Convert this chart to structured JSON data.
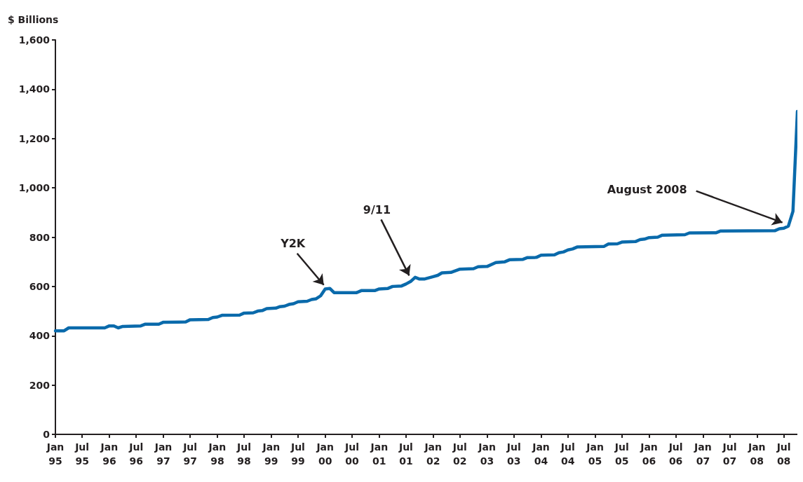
{
  "chart_data": {
    "type": "line",
    "ylabel": "$ Billions",
    "x": [
      "1995-01",
      "1995-03",
      "1995-04",
      "1995-12",
      "1996-01",
      "1996-02",
      "1996-03",
      "1996-04",
      "1996-08",
      "1996-09",
      "1996-12",
      "1997-01",
      "1997-06",
      "1997-07",
      "1997-11",
      "1997-12",
      "1998-01",
      "1998-02",
      "1998-06",
      "1998-07",
      "1998-09",
      "1998-10",
      "1998-11",
      "1998-12",
      "1999-02",
      "1999-03",
      "1999-04",
      "1999-05",
      "1999-06",
      "1999-07",
      "1999-09",
      "1999-10",
      "1999-11",
      "1999-12",
      "2000-01",
      "2000-02",
      "2000-03",
      "2000-08",
      "2000-09",
      "2000-12",
      "2001-01",
      "2001-03",
      "2001-04",
      "2001-06",
      "2001-07",
      "2001-08",
      "2001-09",
      "2001-10",
      "2001-11",
      "2002-01",
      "2002-02",
      "2002-03",
      "2002-05",
      "2002-07",
      "2002-10",
      "2002-11",
      "2003-01",
      "2003-03",
      "2003-05",
      "2003-06",
      "2003-09",
      "2003-10",
      "2003-12",
      "2004-01",
      "2004-04",
      "2004-05",
      "2004-06",
      "2004-07",
      "2004-08",
      "2004-09",
      "2005-03",
      "2005-04",
      "2005-06",
      "2005-07",
      "2005-10",
      "2005-11",
      "2005-12",
      "2006-01",
      "2006-03",
      "2006-04",
      "2006-09",
      "2006-10",
      "2007-04",
      "2007-05",
      "2008-05",
      "2008-06",
      "2008-07",
      "2008-08",
      "2008-09",
      "2008-10"
    ],
    "series": [
      {
        "color": "#0a6aab",
        "values": [
          420,
          420,
          432,
          432,
          440,
          440,
          432,
          438,
          440,
          447,
          447,
          455,
          456,
          465,
          466,
          474,
          476,
          483,
          484,
          492,
          493,
          500,
          502,
          510,
          512,
          518,
          520,
          527,
          530,
          538,
          540,
          547,
          550,
          562,
          590,
          592,
          575,
          575,
          583,
          583,
          590,
          592,
          600,
          602,
          610,
          620,
          637,
          630,
          630,
          640,
          645,
          655,
          657,
          670,
          672,
          680,
          681,
          697,
          700,
          708,
          710,
          717,
          718,
          727,
          728,
          737,
          740,
          748,
          752,
          760,
          762,
          772,
          773,
          780,
          782,
          790,
          792,
          798,
          800,
          808,
          810,
          817,
          818,
          825,
          826,
          834,
          836,
          845,
          905,
          1310
        ]
      }
    ],
    "xlim": [
      "1995-01",
      "2008-10"
    ],
    "xticks": [
      {
        "value": "1995-01",
        "label": "Jan 95"
      },
      {
        "value": "1995-07",
        "label": "Jul 95"
      },
      {
        "value": "1996-01",
        "label": "Jan 96"
      },
      {
        "value": "1996-07",
        "label": "Jul 96"
      },
      {
        "value": "1997-01",
        "label": "Jan 97"
      },
      {
        "value": "1997-07",
        "label": "Jul 97"
      },
      {
        "value": "1998-01",
        "label": "Jan 98"
      },
      {
        "value": "1998-07",
        "label": "Jul 98"
      },
      {
        "value": "1999-01",
        "label": "Jan 99"
      },
      {
        "value": "1999-07",
        "label": "Jul 99"
      },
      {
        "value": "2000-01",
        "label": "Jan 00"
      },
      {
        "value": "2000-07",
        "label": "Jul 00"
      },
      {
        "value": "2001-01",
        "label": "Jan 01"
      },
      {
        "value": "2001-07",
        "label": "Jul 01"
      },
      {
        "value": "2002-01",
        "label": "Jan 02"
      },
      {
        "value": "2002-07",
        "label": "Jul 02"
      },
      {
        "value": "2003-01",
        "label": "Jan 03"
      },
      {
        "value": "2003-07",
        "label": "Jul 03"
      },
      {
        "value": "2004-01",
        "label": "Jan 04"
      },
      {
        "value": "2004-07",
        "label": "Jul 04"
      },
      {
        "value": "2005-01",
        "label": "Jan 05"
      },
      {
        "value": "2005-07",
        "label": "Jul 05"
      },
      {
        "value": "2006-01",
        "label": "Jan 06"
      },
      {
        "value": "2006-07",
        "label": "Jul 06"
      },
      {
        "value": "2007-01",
        "label": "Jan 07"
      },
      {
        "value": "2007-07",
        "label": "Jul 07"
      },
      {
        "value": "2008-01",
        "label": "Jan 08"
      },
      {
        "value": "2008-07",
        "label": "Jul 08"
      }
    ],
    "ylim": [
      0,
      1600
    ],
    "yticks": [
      0,
      200,
      400,
      600,
      800,
      {
        "value": 1000,
        "label": "1,000"
      },
      {
        "value": 1200,
        "label": "1,200"
      },
      {
        "value": 1400,
        "label": "1,400"
      },
      {
        "value": 1600,
        "label": "1,600"
      }
    ],
    "annotations": [
      {
        "text": "Y2K",
        "x": "2000-01",
        "y": 592
      },
      {
        "text": "9/11",
        "x": "2001-08",
        "y": 630
      },
      {
        "text": "August 2008",
        "x": "2008-07",
        "y": 845
      }
    ],
    "grid": false,
    "marker": "none",
    "line_style": "solid"
  }
}
